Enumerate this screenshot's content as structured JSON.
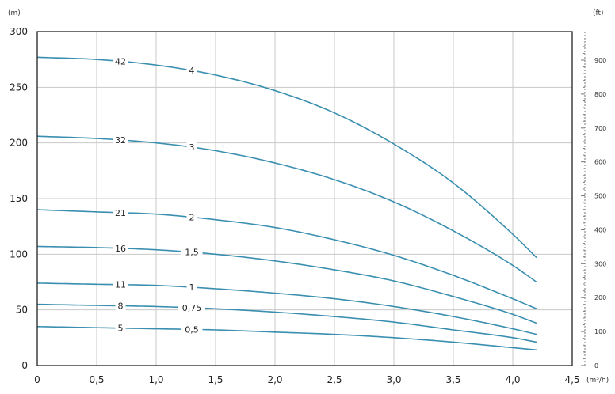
{
  "chart_data": {
    "type": "line",
    "title": "",
    "xlabel": "",
    "ylabel": "",
    "y_unit_left": "(m)",
    "y_unit_right": "(ft)",
    "x_unit": "(m³/h)",
    "xlim": [
      0,
      4.5
    ],
    "ylim": [
      0,
      300
    ],
    "y2lim": [
      0,
      984
    ],
    "grid": true,
    "line_color": "#3a8fb0",
    "x_ticks": [
      "0",
      "0,5",
      "1,0",
      "1,5",
      "2,0",
      "2,5",
      "3,0",
      "3,5",
      "4,0",
      "4,5"
    ],
    "y_ticks": [
      "0",
      "50",
      "100",
      "150",
      "200",
      "250",
      "300"
    ],
    "y2_ticks": [
      "0",
      "100",
      "200",
      "300",
      "400",
      "500",
      "600",
      "700",
      "800",
      "900"
    ],
    "series": [
      {
        "stages": "5",
        "hp": "0,5",
        "x": [
          0,
          0.5,
          1.0,
          1.5,
          2.0,
          2.5,
          3.0,
          3.5,
          4.0,
          4.2
        ],
        "y": [
          35,
          34,
          33,
          32,
          30,
          28,
          25,
          21,
          16,
          14
        ]
      },
      {
        "stages": "8",
        "hp": "0,75",
        "x": [
          0,
          0.5,
          1.0,
          1.5,
          2.0,
          2.5,
          3.0,
          3.5,
          4.0,
          4.2
        ],
        "y": [
          55,
          54,
          53,
          51,
          48,
          44,
          39,
          32,
          25,
          21
        ]
      },
      {
        "stages": "11",
        "hp": "1",
        "x": [
          0,
          0.5,
          1.0,
          1.5,
          2.0,
          2.5,
          3.0,
          3.5,
          4.0,
          4.2
        ],
        "y": [
          74,
          73,
          72,
          69,
          65,
          60,
          53,
          44,
          33,
          28
        ]
      },
      {
        "stages": "16",
        "hp": "1,5",
        "x": [
          0,
          0.5,
          1.0,
          1.5,
          2.0,
          2.5,
          3.0,
          3.5,
          4.0,
          4.2
        ],
        "y": [
          107,
          106,
          104,
          100,
          94,
          86,
          76,
          62,
          46,
          38
        ]
      },
      {
        "stages": "21",
        "hp": "2",
        "x": [
          0,
          0.5,
          1.0,
          1.5,
          2.0,
          2.5,
          3.0,
          3.5,
          4.0,
          4.2
        ],
        "y": [
          140,
          138,
          136,
          131,
          124,
          113,
          99,
          81,
          60,
          51
        ]
      },
      {
        "stages": "32",
        "hp": "3",
        "x": [
          0,
          0.5,
          1.0,
          1.5,
          2.0,
          2.5,
          3.0,
          3.5,
          4.0,
          4.2
        ],
        "y": [
          206,
          204,
          200,
          193,
          182,
          167,
          147,
          121,
          90,
          75
        ]
      },
      {
        "stages": "42",
        "hp": "4",
        "x": [
          0,
          0.5,
          1.0,
          1.5,
          2.0,
          2.5,
          3.0,
          3.5,
          4.0,
          4.2
        ],
        "y": [
          277,
          275,
          270,
          261,
          247,
          227,
          199,
          164,
          118,
          97
        ]
      }
    ]
  }
}
